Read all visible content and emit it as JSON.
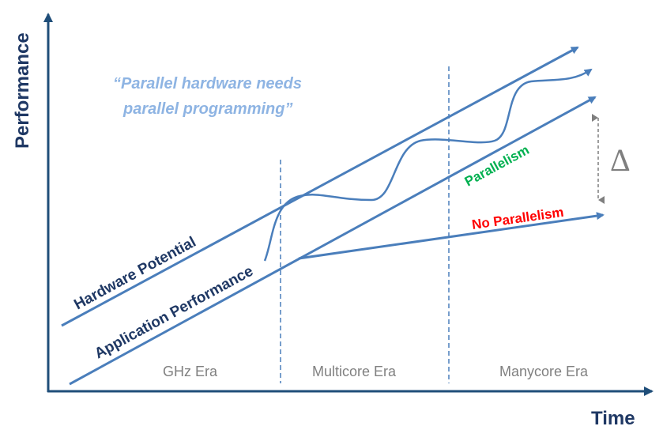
{
  "axes": {
    "y_label": "Performance",
    "x_label": "Time"
  },
  "quote": {
    "line1": "“Parallel hardware needs",
    "line2": "parallel programming”"
  },
  "lines": {
    "hardware_potential": "Hardware Potential",
    "application_performance": "Application Performance",
    "parallelism": "Parallelism",
    "no_parallelism": "No Parallelism"
  },
  "eras": [
    "GHz Era",
    "Multicore Era",
    "Manycore Era"
  ],
  "gap_symbol": "Δ",
  "colors": {
    "axis": "#1f4e79",
    "line": "#4a7ebb",
    "dark_text": "#1f3864",
    "quote": "#8eb4e3",
    "parallelism": "#00b050",
    "no_parallelism": "#ff0000",
    "gray": "#808080"
  }
}
